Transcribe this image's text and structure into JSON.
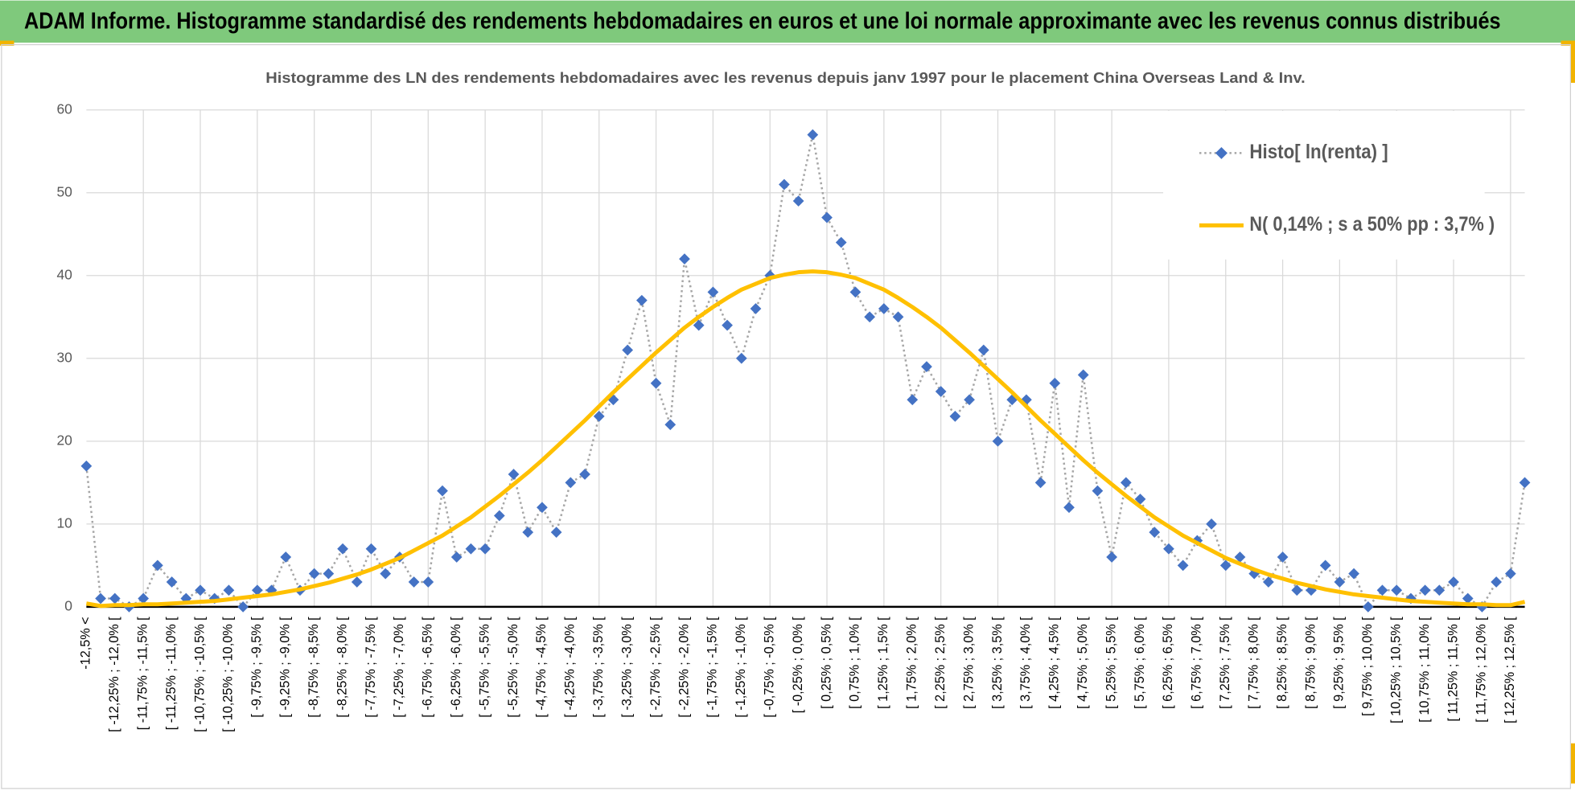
{
  "header": {
    "title": "ADAM Informe. Histogramme standardisé des rendements hebdomadaires en euros et une loi normale approximante avec les revenus connus distribués"
  },
  "chart_data": {
    "type": "line",
    "title": "Histogramme des LN des rendements hebdomadaires avec les revenus depuis janv 1997 pour le placement China Overseas Land & Inv.",
    "categories": [
      "-12,5% <",
      null,
      "[ -12,25% ; -12,0% [",
      null,
      "[ -11,75% ; -11,5% [",
      null,
      "[ -11,25% ; -11,0% [",
      null,
      "[ -10,75% ; -10,5% [",
      null,
      "[ -10,25% ; -10,0% [",
      null,
      "[ -9,75% ; -9,5% [",
      null,
      "[ -9,25% ; -9,0% [",
      null,
      "[ -8,75% ; -8,5% [",
      null,
      "[ -8,25% ; -8,0% [",
      null,
      "[ -7,75% ; -7,5% [",
      null,
      "[ -7,25% ; -7,0% [",
      null,
      "[ -6,75% ; -6,5% [",
      null,
      "[ -6,25% ; -6,0% [",
      null,
      "[ -5,75% ; -5,5% [",
      null,
      "[ -5,25% ; -5,0% [",
      null,
      "[ -4,75% ; -4,5% [",
      null,
      "[ -4,25% ; -4,0% [",
      null,
      "[ -3,75% ; -3,5% [",
      null,
      "[ -3,25% ; -3,0% [",
      null,
      "[ -2,75% ; -2,5% [",
      null,
      "[ -2,25% ; -2,0% [",
      null,
      "[ -1,75% ; -1,5% [",
      null,
      "[ -1,25% ; -1,0% [",
      null,
      "[ -0,75% ; -0,5% [",
      null,
      "[ -0,25% ; 0,0% [",
      null,
      "[ 0,25% ; 0,5% [",
      null,
      "[ 0,75% ; 1,0% [",
      null,
      "[ 1,25% ; 1,5% [",
      null,
      "[ 1,75% ; 2,0% [",
      null,
      "[ 2,25% ; 2,5% [",
      null,
      "[ 2,75% ; 3,0% [",
      null,
      "[ 3,25% ; 3,5% [",
      null,
      "[ 3,75% ; 4,0% [",
      null,
      "[ 4,25% ; 4,5% [",
      null,
      "[ 4,75% ; 5,0% [",
      null,
      "[ 5,25% ; 5,5% [",
      null,
      "[ 5,75% ; 6,0% [",
      null,
      "[ 6,25% ; 6,5% [",
      null,
      "[ 6,75% ; 7,0% [",
      null,
      "[ 7,25% ; 7,5% [",
      null,
      "[ 7,75% ; 8,0% [",
      null,
      "[ 8,25% ; 8,5% [",
      null,
      "[ 8,75% ; 9,0% [",
      null,
      "[ 9,25% ; 9,5% [",
      null,
      "[ 9,75% ; 10,0% [",
      null,
      "[ 10,25% ; 10,5% [",
      null,
      "[ 10,75% ; 11,0% [",
      null,
      "[ 11,25% ; 11,5% [",
      null,
      "[ 11,75% ; 12,0% [",
      null,
      "[ 12,25% ; 12,5% [",
      null
    ],
    "series": [
      {
        "name": "Histo[ ln(renta) ]",
        "color": "#4472c4",
        "line_color": "#a6a6a6",
        "line_style": "dotted",
        "marker": "diamond",
        "values": [
          17,
          1,
          1,
          0,
          1,
          5,
          3,
          1,
          2,
          1,
          2,
          0,
          2,
          2,
          6,
          2,
          4,
          4,
          7,
          3,
          7,
          4,
          6,
          3,
          3,
          14,
          6,
          7,
          7,
          11,
          16,
          9,
          12,
          9,
          15,
          16,
          23,
          25,
          31,
          37,
          27,
          22,
          42,
          34,
          38,
          34,
          30,
          36,
          40,
          51,
          49,
          57,
          47,
          44,
          38,
          35,
          36,
          35,
          25,
          29,
          26,
          23,
          25,
          31,
          20,
          25,
          25,
          15,
          27,
          12,
          28,
          14,
          6,
          15,
          13,
          9,
          7,
          5,
          8,
          10,
          5,
          6,
          4,
          3,
          6,
          2,
          2,
          5,
          3,
          4,
          0,
          2,
          2,
          1,
          2,
          2,
          3,
          1,
          0,
          3,
          4,
          15
        ]
      },
      {
        "name": "N( 0,14% ; s a 50% pp : 3,7% )",
        "color": "#ffc000",
        "line_style": "solid",
        "marker": "none",
        "values": [
          0.4,
          0.1,
          0.2,
          0.2,
          0.3,
          0.3,
          0.4,
          0.5,
          0.6,
          0.7,
          0.9,
          1.1,
          1.3,
          1.5,
          1.8,
          2.1,
          2.5,
          2.9,
          3.4,
          3.9,
          4.5,
          5.2,
          5.9,
          6.8,
          7.7,
          8.6,
          9.7,
          10.8,
          12.1,
          13.4,
          14.8,
          16.2,
          17.7,
          19.3,
          20.9,
          22.5,
          24.2,
          25.9,
          27.5,
          29.1,
          30.7,
          32.2,
          33.7,
          35.0,
          36.2,
          37.3,
          38.3,
          39.0,
          39.7,
          40.1,
          40.4,
          40.5,
          40.4,
          40.1,
          39.7,
          39.0,
          38.3,
          37.3,
          36.2,
          35.0,
          33.7,
          32.2,
          30.7,
          29.1,
          27.5,
          25.9,
          24.2,
          22.5,
          20.9,
          19.3,
          17.7,
          16.2,
          14.8,
          13.4,
          12.1,
          10.8,
          9.7,
          8.6,
          7.7,
          6.8,
          5.9,
          5.2,
          4.5,
          3.9,
          3.4,
          2.9,
          2.5,
          2.1,
          1.8,
          1.5,
          1.3,
          1.1,
          0.9,
          0.7,
          0.6,
          0.5,
          0.4,
          0.3,
          0.3,
          0.2,
          0.2,
          0.6
        ]
      }
    ],
    "ylim": [
      0,
      60
    ],
    "yticks": [
      0,
      10,
      20,
      30,
      40,
      50,
      60
    ],
    "grid": true,
    "legend": "upper right"
  }
}
